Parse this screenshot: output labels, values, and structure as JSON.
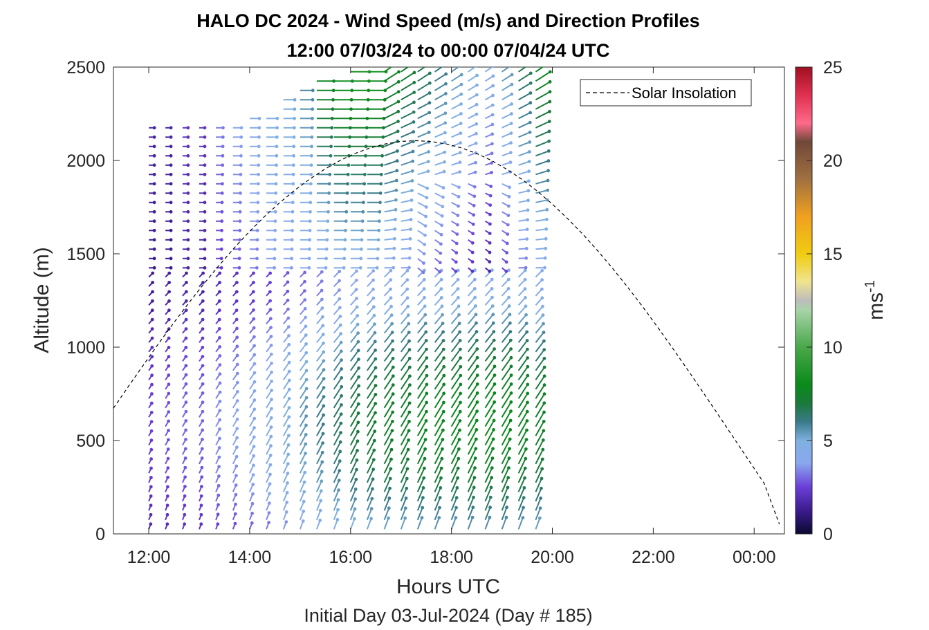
{
  "chart_data": {
    "type": "quiver-profile",
    "title_line1": "HALO DC 2024 - Wind Speed (m/s) and Direction Profiles",
    "title_line2": "12:00 07/03/24 to 00:00 07/04/24  UTC",
    "xlabel": "Hours UTC",
    "ylabel": "Altitude (m)",
    "subtitle": "Initial Day 03-Jul-2024 (Day # 185)",
    "xlim": [
      11.3,
      24.6
    ],
    "ylim": [
      0,
      2500
    ],
    "x_ticks": [
      12,
      14,
      16,
      18,
      20,
      22,
      24
    ],
    "x_tick_labels": [
      "12:00",
      "14:00",
      "16:00",
      "18:00",
      "20:00",
      "22:00",
      "00:00"
    ],
    "y_ticks": [
      0,
      500,
      1000,
      1500,
      2000,
      2500
    ],
    "y_tick_labels": [
      "0",
      "500",
      "1000",
      "1500",
      "2000",
      "2500"
    ],
    "grid": false,
    "legend": {
      "entries": [
        "Solar Insolation"
      ],
      "placement": "top-right",
      "line_style": "dashed"
    },
    "colorbar": {
      "label": "ms",
      "label_superscript": "-1",
      "range": [
        0,
        25
      ],
      "ticks": [
        0,
        5,
        10,
        15,
        20,
        25
      ],
      "tick_labels": [
        "0",
        "5",
        "10",
        "15",
        "20",
        "25"
      ],
      "colormap": [
        [
          0,
          "#0a0a30"
        ],
        [
          1.2,
          "#3a1a8a"
        ],
        [
          2.5,
          "#6a3ed8"
        ],
        [
          3.8,
          "#8aa8ee"
        ],
        [
          5.0,
          "#7fb0e0"
        ],
        [
          6.0,
          "#3a7a8a"
        ],
        [
          7.0,
          "#1a7a3a"
        ],
        [
          8.0,
          "#0a8a1a"
        ],
        [
          10.0,
          "#4aa84a"
        ],
        [
          12.0,
          "#a8d4a8"
        ],
        [
          12.5,
          "#bcbcbc"
        ],
        [
          13.5,
          "#f0e490"
        ],
        [
          15.0,
          "#f0cc10"
        ],
        [
          17.0,
          "#f0a020"
        ],
        [
          19.0,
          "#a07040"
        ],
        [
          21.0,
          "#704838"
        ],
        [
          22.0,
          "#ff6a8a"
        ],
        [
          23.5,
          "#e03050"
        ],
        [
          25.0,
          "#a01020"
        ]
      ]
    },
    "solar_insolation": {
      "x": [
        11.3,
        11.6,
        11.9,
        12.2,
        12.5,
        12.8,
        13.1,
        13.4,
        13.7,
        14.0,
        14.3,
        14.6,
        14.9,
        15.2,
        15.5,
        15.8,
        16.1,
        16.4,
        16.7,
        17.0,
        17.3,
        17.6,
        17.9,
        18.2,
        18.5,
        18.8,
        19.1,
        19.4,
        19.7,
        20.0,
        20.3,
        20.6,
        20.9,
        21.2,
        21.5,
        21.8,
        22.1,
        22.4,
        22.7,
        23.0,
        23.3,
        23.6,
        23.9,
        24.2,
        24.5
      ],
      "y": [
        673,
        791,
        907,
        1021,
        1132,
        1239,
        1342,
        1440,
        1533,
        1620,
        1701,
        1775,
        1842,
        1902,
        1955,
        2001,
        2039,
        2068,
        2089,
        2102,
        2106,
        2101,
        2088,
        2067,
        2037,
        1999,
        1952,
        1898,
        1836,
        1766,
        1689,
        1606,
        1516,
        1420,
        1319,
        1213,
        1102,
        989,
        872,
        753,
        633,
        512,
        391,
        270,
        52
      ]
    },
    "wind_profiles": {
      "times": [
        12.0,
        12.33,
        12.67,
        13.0,
        13.33,
        13.67,
        14.0,
        14.33,
        14.67,
        15.0,
        15.33,
        15.67,
        16.0,
        16.33,
        16.67,
        17.0,
        17.33,
        17.67,
        18.0,
        18.33,
        18.67,
        19.0,
        19.33,
        19.67
      ],
      "altitudes": [
        25,
        75,
        125,
        175,
        225,
        275,
        325,
        375,
        425,
        475,
        525,
        575,
        625,
        675,
        725,
        775,
        825,
        875,
        925,
        975,
        1025,
        1075,
        1125,
        1175,
        1225,
        1275,
        1325,
        1375,
        1425,
        1475,
        1525,
        1575,
        1625,
        1675,
        1725,
        1775,
        1825,
        1875,
        1925,
        1975,
        2025,
        2075,
        2125,
        2175,
        2225,
        2275,
        2325,
        2375,
        2425,
        2475
      ],
      "top_altitude": [
        2200,
        2200,
        2200,
        2200,
        2200,
        2200,
        2250,
        2250,
        2350,
        2400,
        2450,
        2450,
        2500,
        2500,
        2500,
        2500,
        2500,
        2500,
        2500,
        2500,
        2500,
        2500,
        2500,
        2500
      ],
      "low_level_speed": [
        2.5,
        2.8,
        3.0,
        3.0,
        3.5,
        3.8,
        4.2,
        4.5,
        5.0,
        5.5,
        6.0,
        6.5,
        7.0,
        7.2,
        7.5,
        7.5,
        7.8,
        7.8,
        7.8,
        8.0,
        8.0,
        8.0,
        7.8,
        7.5
      ],
      "upper_speed": [
        1.5,
        1.5,
        2.0,
        2.0,
        3.0,
        3.5,
        4.0,
        4.5,
        4.5,
        5.0,
        5.0,
        5.5,
        5.5,
        5.5,
        5.0,
        4.5,
        4.0,
        3.5,
        3.0,
        2.5,
        2.0,
        3.0,
        4.0,
        5.0
      ],
      "low_level_direction_deg": 200,
      "upper_direction_deg": 270
    }
  }
}
